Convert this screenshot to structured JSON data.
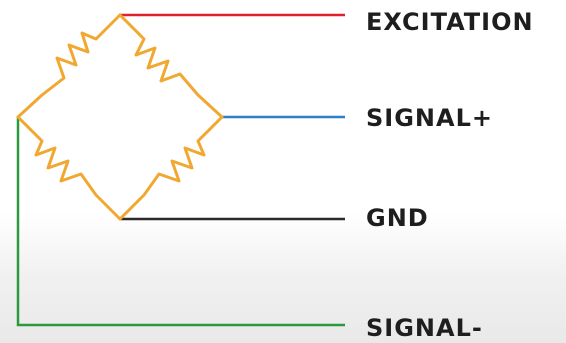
{
  "labels": {
    "excitation": "EXCITATION",
    "signal_plus": "SIGNAL+",
    "gnd": "GND",
    "signal_minus": "SIGNAL-"
  },
  "colors": {
    "excitation": "#e0202c",
    "signal_plus": "#2f7fcc",
    "gnd": "#2a2a2a",
    "signal_minus": "#2c9a3c",
    "resistor": "#f0a830"
  },
  "icons": {
    "bridge": "wheatstone-bridge-icon"
  }
}
